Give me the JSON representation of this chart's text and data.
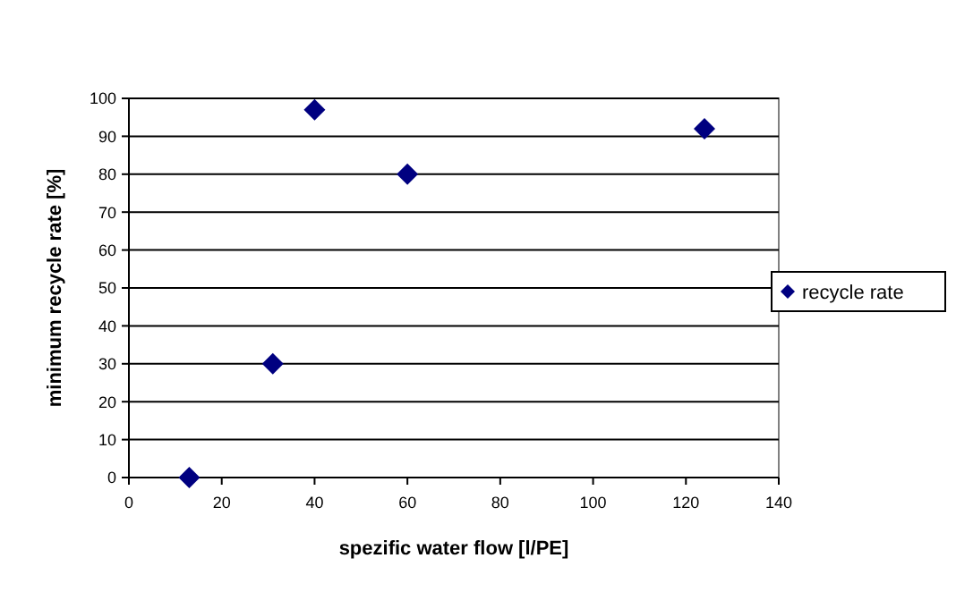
{
  "chart_data": {
    "type": "scatter",
    "xlabel": "spezific water flow [l/PE]",
    "ylabel": "minimum recycle rate [%]",
    "x": [
      13,
      31,
      40,
      60,
      124
    ],
    "series": [
      {
        "name": "recycle rate",
        "color": "#000080",
        "values": [
          0,
          30,
          97,
          80,
          92
        ]
      }
    ],
    "xlim": [
      0,
      140
    ],
    "xticks": [
      0,
      20,
      40,
      60,
      80,
      100,
      120,
      140
    ],
    "ylim": [
      0,
      100
    ],
    "yticks": [
      0,
      10,
      20,
      30,
      40,
      50,
      60,
      70,
      80,
      90,
      100
    ],
    "grid": "y",
    "legend": "right",
    "marker": "diamond"
  }
}
